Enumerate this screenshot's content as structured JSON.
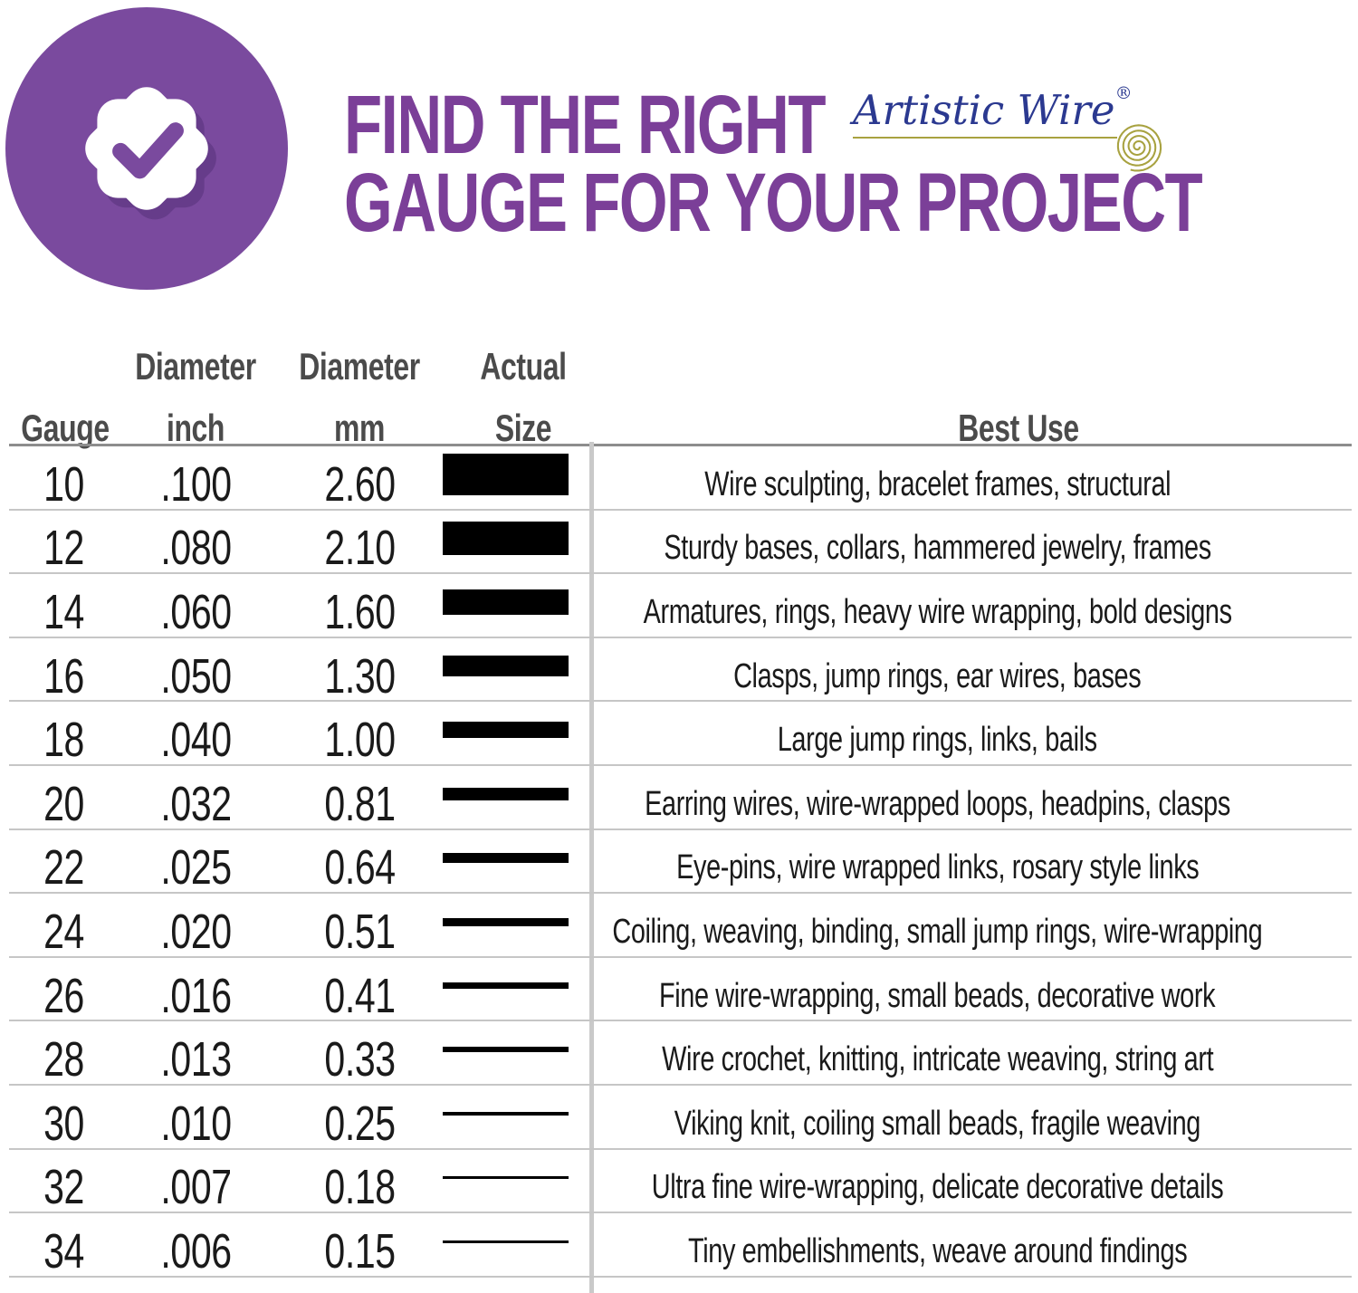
{
  "branding": {
    "badge_icon": "check-badge-icon",
    "logo_text": "Artistic Wire",
    "registered_mark": "®",
    "logo_ornament": "wire-spiral-icon",
    "colors": {
      "badge_purple": "#7a4a9e",
      "title_purple": "#7b3f98",
      "logo_blue": "#2b3990",
      "gold": "#a8a240",
      "bar_black": "#000000",
      "header_gray": "#4b4b4b",
      "rule_gray": "#8d8d8d",
      "line_gray": "#c6c6c6"
    }
  },
  "title": {
    "line1": "FIND THE RIGHT",
    "line2": "GAUGE FOR YOUR PROJECT"
  },
  "table_headers": {
    "gauge": "Gauge",
    "diameter_inch_line1": "Diameter",
    "diameter_inch_line2": "inch",
    "diameter_mm_line1": "Diameter",
    "diameter_mm_line2": "mm",
    "actual_size_line1": "Actual",
    "actual_size_line2": "Size",
    "best_use": "Best Use"
  },
  "chart_data": {
    "type": "table",
    "title": "FIND THE RIGHT GAUGE FOR YOUR PROJECT",
    "columns": [
      "Gauge",
      "Diameter inch",
      "Diameter mm",
      "Actual Size",
      "Best Use"
    ],
    "actual_size_note": "black bar in Actual Size column is drawn with thickness proportional to wire diameter in mm",
    "rows": [
      {
        "gauge": "10",
        "inch": ".100",
        "mm": "2.60",
        "mm_value": 2.6,
        "best_use": "Wire sculpting, bracelet frames, structural"
      },
      {
        "gauge": "12",
        "inch": ".080",
        "mm": "2.10",
        "mm_value": 2.1,
        "best_use": "Sturdy bases, collars, hammered jewelry, frames"
      },
      {
        "gauge": "14",
        "inch": ".060",
        "mm": "1.60",
        "mm_value": 1.6,
        "best_use": "Armatures, rings, heavy wire wrapping, bold designs"
      },
      {
        "gauge": "16",
        "inch": ".050",
        "mm": "1.30",
        "mm_value": 1.3,
        "best_use": "Clasps, jump rings, ear wires, bases"
      },
      {
        "gauge": "18",
        "inch": ".040",
        "mm": "1.00",
        "mm_value": 1.0,
        "best_use": "Large jump rings, links, bails"
      },
      {
        "gauge": "20",
        "inch": ".032",
        "mm": "0.81",
        "mm_value": 0.81,
        "best_use": "Earring wires, wire-wrapped loops, headpins, clasps"
      },
      {
        "gauge": "22",
        "inch": ".025",
        "mm": "0.64",
        "mm_value": 0.64,
        "best_use": "Eye-pins, wire wrapped links, rosary style links"
      },
      {
        "gauge": "24",
        "inch": ".020",
        "mm": "0.51",
        "mm_value": 0.51,
        "best_use": "Coiling, weaving, binding, small jump rings, wire-wrapping"
      },
      {
        "gauge": "26",
        "inch": ".016",
        "mm": "0.41",
        "mm_value": 0.41,
        "best_use": "Fine wire-wrapping, small beads, decorative work"
      },
      {
        "gauge": "28",
        "inch": ".013",
        "mm": "0.33",
        "mm_value": 0.33,
        "best_use": "Wire crochet, knitting, intricate weaving, string art"
      },
      {
        "gauge": "30",
        "inch": ".010",
        "mm": "0.25",
        "mm_value": 0.25,
        "best_use": "Viking knit, coiling small beads, fragile weaving"
      },
      {
        "gauge": "32",
        "inch": ".007",
        "mm": "0.18",
        "mm_value": 0.18,
        "best_use": "Ultra fine wire-wrapping, delicate decorative details"
      },
      {
        "gauge": "34",
        "inch": ".006",
        "mm": "0.15",
        "mm_value": 0.15,
        "best_use": "Tiny embellishments, weave around findings"
      }
    ]
  }
}
